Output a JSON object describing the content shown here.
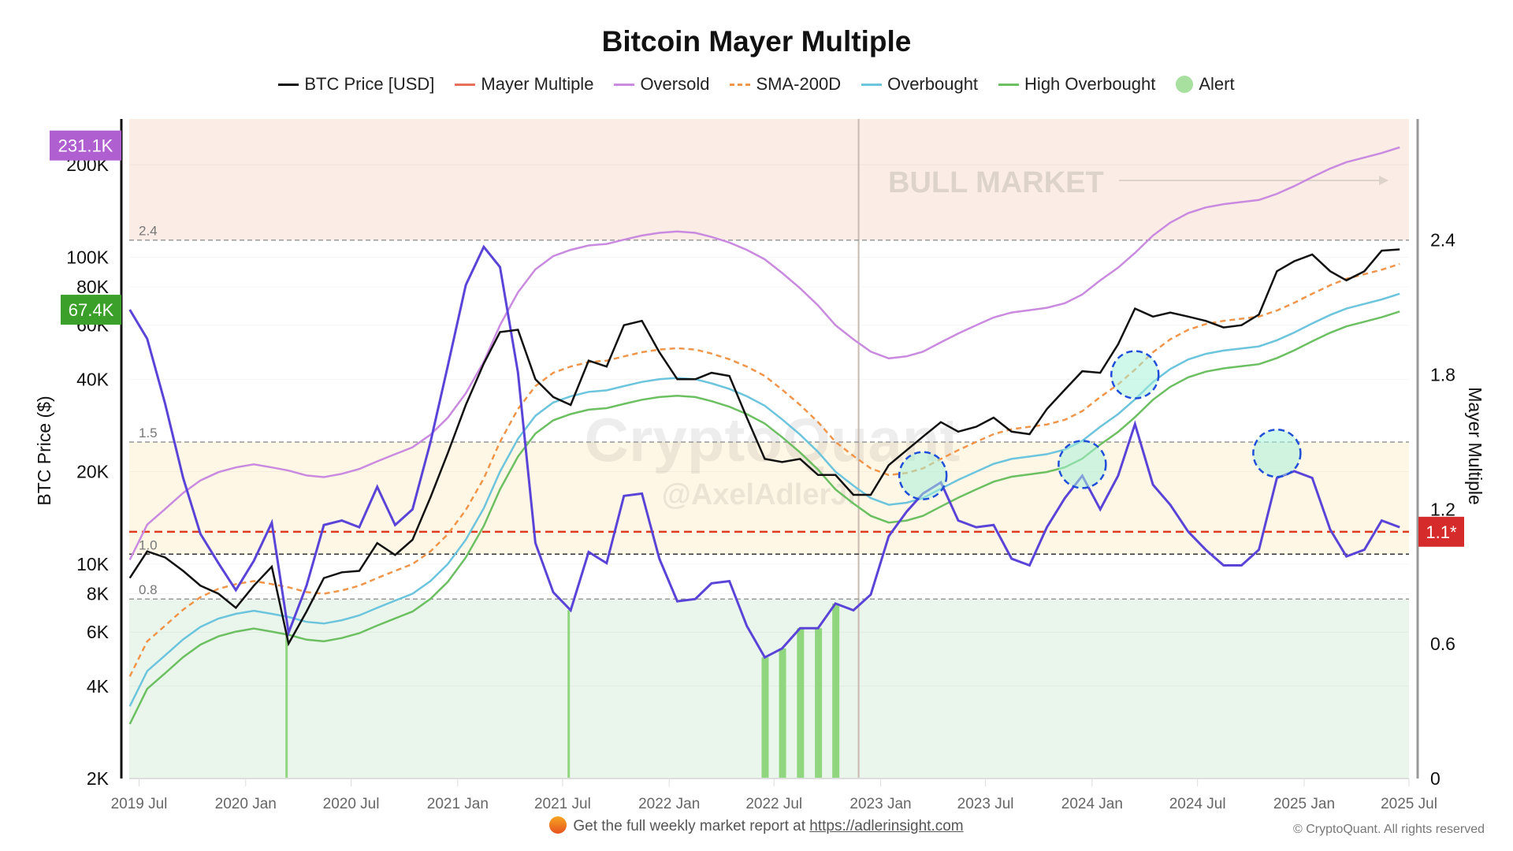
{
  "chart_data": {
    "type": "line",
    "title": "Bitcoin Mayer Multiple",
    "ylabel_left": "BTC Price ($)",
    "ylabel_right": "Mayer Multiple",
    "y_left_scale": "log",
    "ylim_left": [
      2000,
      282000
    ],
    "ylim_right": [
      0,
      2.94
    ],
    "xlim": [
      "2019-06-14",
      "2025-07-01"
    ],
    "x_ticks": [
      "2019 Jul",
      "2020 Jan",
      "2020 Jul",
      "2021 Jan",
      "2021 Jul",
      "2022 Jan",
      "2022 Jul",
      "2023 Jan",
      "2023 Jul",
      "2024 Jan",
      "2024 Jul",
      "2025 Jan",
      "2025 Jul"
    ],
    "x_tick_dates": [
      "2019-07",
      "2020-01",
      "2020-07",
      "2021-01",
      "2021-07",
      "2022-01",
      "2022-07",
      "2023-01",
      "2023-07",
      "2024-01",
      "2024-07",
      "2025-01",
      "2025-07"
    ],
    "y_left_ticks": [
      {
        "v": 2000,
        "label": "2K"
      },
      {
        "v": 4000,
        "label": "4K"
      },
      {
        "v": 6000,
        "label": "6K"
      },
      {
        "v": 8000,
        "label": "8K"
      },
      {
        "v": 10000,
        "label": "10K"
      },
      {
        "v": 20000,
        "label": "20K"
      },
      {
        "v": 40000,
        "label": "40K"
      },
      {
        "v": 60000,
        "label": "60K"
      },
      {
        "v": 80000,
        "label": "80K"
      },
      {
        "v": 100000,
        "label": "100K"
      },
      {
        "v": 200000,
        "label": "200K"
      }
    ],
    "y_right_ticks": [
      {
        "v": 0,
        "label": "0"
      },
      {
        "v": 0.6,
        "label": "0.6"
      },
      {
        "v": 1.2,
        "label": "1.2"
      },
      {
        "v": 1.8,
        "label": "1.8"
      },
      {
        "v": 2.4,
        "label": "2.4"
      }
    ],
    "legend": [
      {
        "name": "BTC Price [USD]",
        "color": "#111111",
        "style": "solid"
      },
      {
        "name": "Mayer Multiple",
        "color": "#e8705a",
        "style": "solid"
      },
      {
        "name": "Oversold",
        "color": "#c98ae0",
        "style": "solid"
      },
      {
        "name": "SMA-200D",
        "color": "#f0954a",
        "style": "dashed"
      },
      {
        "name": "Overbought",
        "color": "#6cc4dd",
        "style": "solid"
      },
      {
        "name": "High Overbought",
        "color": "#6cc062",
        "style": "solid"
      },
      {
        "name": "Alert",
        "color": "#a8e0a0",
        "style": "dot"
      }
    ],
    "legend_placement": "top",
    "x": [
      "2019-06",
      "2019-07",
      "2019-08",
      "2019-09",
      "2019-10",
      "2019-11",
      "2019-12",
      "2020-01",
      "2020-02",
      "2020-03",
      "2020-04",
      "2020-05",
      "2020-06",
      "2020-07",
      "2020-08",
      "2020-09",
      "2020-10",
      "2020-11",
      "2020-12",
      "2021-01",
      "2021-02",
      "2021-03",
      "2021-04",
      "2021-05",
      "2021-06",
      "2021-07",
      "2021-08",
      "2021-09",
      "2021-10",
      "2021-11",
      "2021-12",
      "2022-01",
      "2022-02",
      "2022-03",
      "2022-04",
      "2022-05",
      "2022-06",
      "2022-07",
      "2022-08",
      "2022-09",
      "2022-10",
      "2022-11",
      "2022-12",
      "2023-01",
      "2023-02",
      "2023-03",
      "2023-04",
      "2023-05",
      "2023-06",
      "2023-07",
      "2023-08",
      "2023-09",
      "2023-10",
      "2023-11",
      "2023-12",
      "2024-01",
      "2024-02",
      "2024-03",
      "2024-04",
      "2024-05",
      "2024-06",
      "2024-07",
      "2024-08",
      "2024-09",
      "2024-10",
      "2024-11",
      "2024-12",
      "2025-01",
      "2025-02",
      "2025-03",
      "2025-04",
      "2025-05",
      "2025-06"
    ],
    "series": [
      {
        "name": "BTC Price [USD]",
        "axis": "left",
        "values": [
          9000,
          11000,
          10500,
          9500,
          8500,
          8000,
          7200,
          8500,
          9800,
          5500,
          7000,
          9000,
          9400,
          9500,
          11700,
          10700,
          12000,
          16500,
          23000,
          33000,
          45000,
          57000,
          58000,
          40000,
          35000,
          33000,
          46000,
          44000,
          60000,
          62000,
          49000,
          40000,
          40000,
          42000,
          41000,
          30000,
          22000,
          21500,
          22000,
          19500,
          19500,
          16800,
          16800,
          21000,
          23500,
          26000,
          29000,
          27000,
          28000,
          30000,
          27000,
          26500,
          32000,
          37000,
          42500,
          42000,
          52000,
          68000,
          64000,
          66000,
          64000,
          62000,
          59000,
          60000,
          65000,
          90000,
          97000,
          102000,
          90000,
          84000,
          90000,
          105000,
          106000
        ]
      },
      {
        "name": "SMA-200D",
        "axis": "left",
        "values": [
          4300,
          5600,
          6300,
          7100,
          7800,
          8300,
          8600,
          8800,
          8600,
          8400,
          8100,
          8000,
          8200,
          8500,
          9000,
          9500,
          10000,
          11000,
          12500,
          15000,
          19000,
          25000,
          32000,
          38000,
          42000,
          44000,
          45500,
          46000,
          47500,
          49000,
          50000,
          50500,
          50000,
          48500,
          46500,
          44000,
          41000,
          37000,
          33000,
          29000,
          25000,
          22500,
          20500,
          19500,
          19800,
          20500,
          22000,
          23500,
          25000,
          26500,
          27500,
          28000,
          28500,
          29500,
          31500,
          35000,
          38500,
          43000,
          49000,
          54000,
          58000,
          60500,
          62000,
          63000,
          64000,
          67000,
          71000,
          76000,
          81000,
          85000,
          88000,
          91000,
          95000
        ]
      },
      {
        "name": "Mayer Multiple",
        "axis": "right",
        "values": [
          2.09,
          1.96,
          1.67,
          1.34,
          1.09,
          0.96,
          0.84,
          0.97,
          1.14,
          0.65,
          0.86,
          1.13,
          1.15,
          1.12,
          1.3,
          1.13,
          1.2,
          1.5,
          1.84,
          2.2,
          2.37,
          2.28,
          1.81,
          1.05,
          0.83,
          0.75,
          1.01,
          0.96,
          1.26,
          1.27,
          0.98,
          0.79,
          0.8,
          0.87,
          0.88,
          0.68,
          0.54,
          0.58,
          0.67,
          0.67,
          0.78,
          0.75,
          0.82,
          1.08,
          1.19,
          1.27,
          1.32,
          1.15,
          1.12,
          1.13,
          0.98,
          0.95,
          1.12,
          1.25,
          1.35,
          1.2,
          1.35,
          1.58,
          1.31,
          1.22,
          1.1,
          1.02,
          0.95,
          0.95,
          1.02,
          1.34,
          1.37,
          1.34,
          1.11,
          0.99,
          1.02,
          1.15,
          1.12
        ]
      }
    ],
    "mm_line_color": "#5a44d8",
    "thresholds": [
      {
        "v": 2.4,
        "label": "2.4"
      },
      {
        "v": 1.5,
        "label": "1.5"
      },
      {
        "v": 1.0,
        "label": "1.0"
      },
      {
        "v": 0.8,
        "label": "0.8"
      }
    ],
    "current_mm_line": 1.1,
    "zones": [
      {
        "from": 2.4,
        "to": 2.94,
        "color": "#fbece6"
      },
      {
        "from": 1.0,
        "to": 1.5,
        "color": "#fff7e6"
      },
      {
        "from": 0,
        "to": 0.8,
        "color": "#eaf6ec"
      }
    ],
    "alerts": [
      {
        "x": "2023-03",
        "mm": 1.35
      },
      {
        "x": "2023-12",
        "mm": 1.4
      },
      {
        "x": "2024-03",
        "mm": 1.8
      },
      {
        "x": "2024-11",
        "mm": 1.45
      }
    ],
    "alert_bars": [
      "2020-03",
      "2021-07",
      "2022-06",
      "2022-07",
      "2022-08",
      "2022-09",
      "2022-10"
    ],
    "marker_date": "2022-11-24",
    "annotation": "BULL MARKET",
    "badges": [
      {
        "label": "231.1K",
        "color": "#b05fd0",
        "axis": "left",
        "v": 231100
      },
      {
        "label": "67.4K",
        "color": "#3aa02a",
        "axis": "left",
        "v": 67400
      },
      {
        "label": "1.1*",
        "color": "#d62b2b",
        "axis": "right",
        "v": 1.1
      }
    ],
    "watermark": [
      "CryptoQuant",
      "@AxelAdlerJr"
    ]
  },
  "footer": {
    "text": "Get the full weekly market report at",
    "link": "https://adlerinsight.com",
    "copyright": "© CryptoQuant. All rights reserved"
  }
}
